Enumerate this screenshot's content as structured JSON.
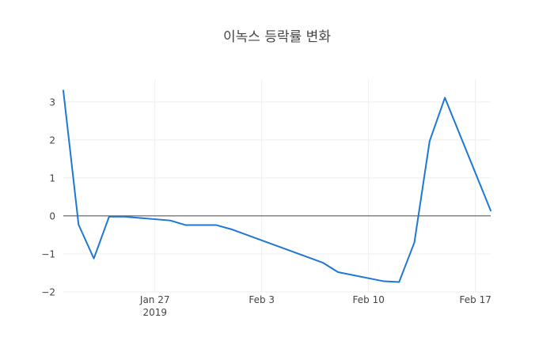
{
  "chart_data": {
    "type": "line",
    "title": "이녹스 등락률 변화",
    "xlabel": "",
    "ylabel": "",
    "x": [
      "2019-01-21",
      "2019-01-22",
      "2019-01-23",
      "2019-01-24",
      "2019-01-25",
      "2019-01-28",
      "2019-01-29",
      "2019-01-30",
      "2019-01-31",
      "2019-02-01",
      "2019-02-07",
      "2019-02-08",
      "2019-02-11",
      "2019-02-12",
      "2019-02-13",
      "2019-02-14",
      "2019-02-15",
      "2019-02-18"
    ],
    "series": [
      {
        "values": [
          3.3,
          -0.23,
          -1.12,
          -0.02,
          -0.02,
          -0.12,
          -0.24,
          -0.24,
          -0.24,
          -0.35,
          -1.23,
          -1.48,
          -1.72,
          -1.74,
          -0.7,
          1.97,
          3.11,
          0.14
        ]
      }
    ],
    "xlim": [
      "2019-01-21",
      "2019-02-18"
    ],
    "ylim": [
      -2,
      3.6
    ],
    "yticks": [
      3,
      2,
      1,
      0,
      -1,
      -2
    ],
    "ytick_labels": [
      "3",
      "2",
      "1",
      "0",
      "−1",
      "−2"
    ],
    "xticks": [
      "2019-01-27",
      "2019-02-03",
      "2019-02-10",
      "2019-02-17"
    ],
    "xtick_labels": [
      "Jan 27",
      "Feb 3",
      "Feb 10",
      "Feb 17"
    ],
    "xtick_sublabel": "2019",
    "grid": true,
    "zero_line": true,
    "legend": "none",
    "colors": {
      "line": "#1f77d4",
      "grid": "#eeeeee",
      "zero_line": "#444444",
      "tick_text": "#444444"
    }
  }
}
